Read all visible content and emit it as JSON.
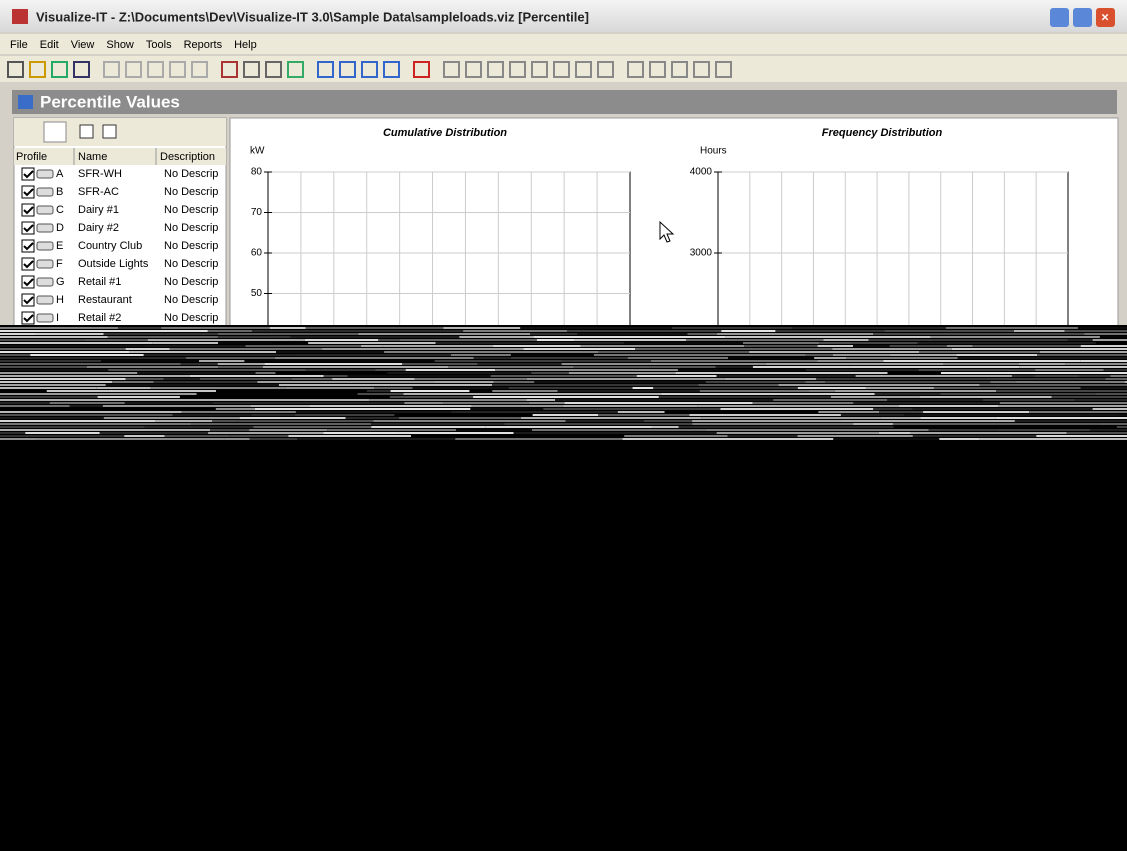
{
  "window": {
    "title": "Visualize-IT - Z:\\Documents\\Dev\\Visualize-IT 3.0\\Sample Data\\sampleloads.viz [Percentile]"
  },
  "menu": [
    "File",
    "Edit",
    "View",
    "Show",
    "Tools",
    "Reports",
    "Help"
  ],
  "panel": {
    "title": "Percentile Values"
  },
  "table": {
    "headers": [
      "Profile",
      "Name",
      "Description"
    ],
    "rows": [
      [
        "A",
        "SFR-WH",
        "No Descrip"
      ],
      [
        "B",
        "SFR-AC",
        "No Descrip"
      ],
      [
        "C",
        "Dairy #1",
        "No Descrip"
      ],
      [
        "D",
        "Dairy #2",
        "No Descrip"
      ],
      [
        "E",
        "Country Club",
        "No Descrip"
      ],
      [
        "F",
        "Outside Lights",
        "No Descrip"
      ],
      [
        "G",
        "Retail #1",
        "No Descrip"
      ],
      [
        "H",
        "Restaurant",
        "No Descrip"
      ],
      [
        "I",
        "Retail #2",
        "No Descrip"
      ]
    ]
  },
  "charts": [
    {
      "title": "Cumulative Distribution",
      "y_label": "kW",
      "yticks": [
        80,
        70,
        60,
        50
      ]
    },
    {
      "title": "Frequency Distribution",
      "y_label": "Hours",
      "yticks": [
        4000,
        3000
      ]
    }
  ]
}
